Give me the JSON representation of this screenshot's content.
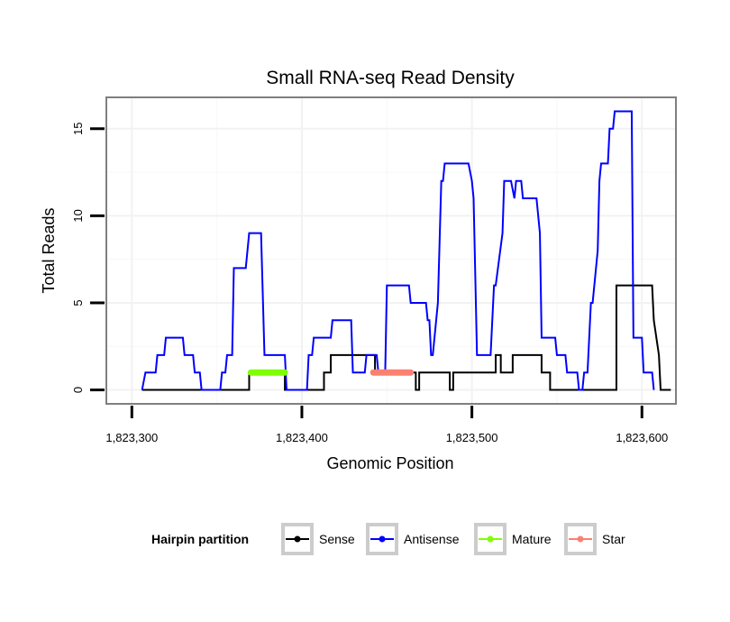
{
  "chart_data": {
    "type": "line",
    "title": "Small RNA-seq Read Density",
    "xlabel": "Genomic Position",
    "ylabel": "Total Reads",
    "xlim": [
      1823285,
      1823620
    ],
    "ylim": [
      -0.8,
      16.8
    ],
    "x_ticks": [
      1823300,
      1823400,
      1823500,
      1823600
    ],
    "x_tick_labels": [
      "1,823,300",
      "1,823,400",
      "1,823,500",
      "1,823,600"
    ],
    "y_ticks": [
      0,
      5,
      10,
      15
    ],
    "y_tick_labels": [
      "0",
      "5",
      "10",
      "15"
    ],
    "grid": true,
    "series": [
      {
        "name": "Sense",
        "color": "#000000",
        "points": [
          [
            1823306,
            0
          ],
          [
            1823369,
            0
          ],
          [
            1823369,
            1
          ],
          [
            1823390,
            1
          ],
          [
            1823390,
            0
          ],
          [
            1823413,
            0
          ],
          [
            1823413,
            1
          ],
          [
            1823417,
            1
          ],
          [
            1823417,
            2
          ],
          [
            1823443,
            2
          ],
          [
            1823443,
            1
          ],
          [
            1823467,
            1
          ],
          [
            1823467,
            0
          ],
          [
            1823469,
            0
          ],
          [
            1823469,
            1
          ],
          [
            1823487,
            1
          ],
          [
            1823487,
            0
          ],
          [
            1823489,
            0
          ],
          [
            1823489,
            1
          ],
          [
            1823514,
            1
          ],
          [
            1823514,
            2
          ],
          [
            1823517,
            2
          ],
          [
            1823517,
            1
          ],
          [
            1823524,
            1
          ],
          [
            1823524,
            2
          ],
          [
            1823541,
            2
          ],
          [
            1823541,
            1
          ],
          [
            1823546,
            1
          ],
          [
            1823546,
            0
          ],
          [
            1823585,
            0
          ],
          [
            1823585,
            6
          ],
          [
            1823606,
            6
          ],
          [
            1823607,
            4
          ],
          [
            1823610,
            2
          ],
          [
            1823611,
            0
          ],
          [
            1823617,
            0
          ]
        ]
      },
      {
        "name": "Antisense",
        "color": "#0000ff",
        "points": [
          [
            1823306,
            0
          ],
          [
            1823308,
            1
          ],
          [
            1823314,
            1
          ],
          [
            1823315,
            2
          ],
          [
            1823319,
            2
          ],
          [
            1823320,
            3
          ],
          [
            1823330,
            3
          ],
          [
            1823331,
            2
          ],
          [
            1823336,
            2
          ],
          [
            1823337,
            1
          ],
          [
            1823340,
            1
          ],
          [
            1823341,
            0
          ],
          [
            1823352,
            0
          ],
          [
            1823353,
            1
          ],
          [
            1823355,
            1
          ],
          [
            1823356,
            2
          ],
          [
            1823359,
            2
          ],
          [
            1823360,
            7
          ],
          [
            1823367,
            7
          ],
          [
            1823369,
            9
          ],
          [
            1823376,
            9
          ],
          [
            1823378,
            2
          ],
          [
            1823390,
            2
          ],
          [
            1823391,
            0
          ],
          [
            1823403,
            0
          ],
          [
            1823404,
            2
          ],
          [
            1823406,
            2
          ],
          [
            1823407,
            3
          ],
          [
            1823417,
            3
          ],
          [
            1823418,
            4
          ],
          [
            1823429,
            4
          ],
          [
            1823430,
            1
          ],
          [
            1823437,
            1
          ],
          [
            1823438,
            2
          ],
          [
            1823444,
            2
          ],
          [
            1823445,
            1
          ],
          [
            1823449,
            1
          ],
          [
            1823450,
            6
          ],
          [
            1823463,
            6
          ],
          [
            1823464,
            5
          ],
          [
            1823473,
            5
          ],
          [
            1823474,
            4
          ],
          [
            1823475,
            4
          ],
          [
            1823476,
            2
          ],
          [
            1823477,
            2
          ],
          [
            1823479,
            4
          ],
          [
            1823480,
            5
          ],
          [
            1823482,
            12
          ],
          [
            1823483,
            12
          ],
          [
            1823484,
            13
          ],
          [
            1823498,
            13
          ],
          [
            1823500,
            12
          ],
          [
            1823501,
            11
          ],
          [
            1823503,
            2
          ],
          [
            1823511,
            2
          ],
          [
            1823513,
            6
          ],
          [
            1823514,
            6
          ],
          [
            1823518,
            9
          ],
          [
            1823519,
            12
          ],
          [
            1823523,
            12
          ],
          [
            1823525,
            11
          ],
          [
            1823526,
            12
          ],
          [
            1823529,
            12
          ],
          [
            1823530,
            11
          ],
          [
            1823538,
            11
          ],
          [
            1823540,
            9
          ],
          [
            1823541,
            3
          ],
          [
            1823549,
            3
          ],
          [
            1823550,
            2
          ],
          [
            1823555,
            2
          ],
          [
            1823556,
            1
          ],
          [
            1823562,
            1
          ],
          [
            1823563,
            0
          ],
          [
            1823565,
            0
          ],
          [
            1823566,
            1
          ],
          [
            1823568,
            1
          ],
          [
            1823570,
            5
          ],
          [
            1823571,
            5
          ],
          [
            1823573,
            7
          ],
          [
            1823574,
            8
          ],
          [
            1823575,
            12
          ],
          [
            1823576,
            13
          ],
          [
            1823580,
            13
          ],
          [
            1823581,
            15
          ],
          [
            1823583,
            15
          ],
          [
            1823584,
            16
          ],
          [
            1823594,
            16
          ],
          [
            1823595,
            3
          ],
          [
            1823600,
            3
          ],
          [
            1823601,
            1
          ],
          [
            1823606,
            1
          ],
          [
            1823607,
            0
          ]
        ]
      },
      {
        "name": "Mature",
        "color": "#7fff00",
        "points": [
          [
            1823370,
            1
          ],
          [
            1823390,
            1
          ]
        ]
      },
      {
        "name": "Star",
        "color": "#fa8072",
        "points": [
          [
            1823442,
            1
          ],
          [
            1823464,
            1
          ]
        ]
      }
    ],
    "legend": {
      "title": "Hairpin partition",
      "position": "bottom",
      "entries": [
        "Sense",
        "Antisense",
        "Mature",
        "Star"
      ]
    }
  }
}
